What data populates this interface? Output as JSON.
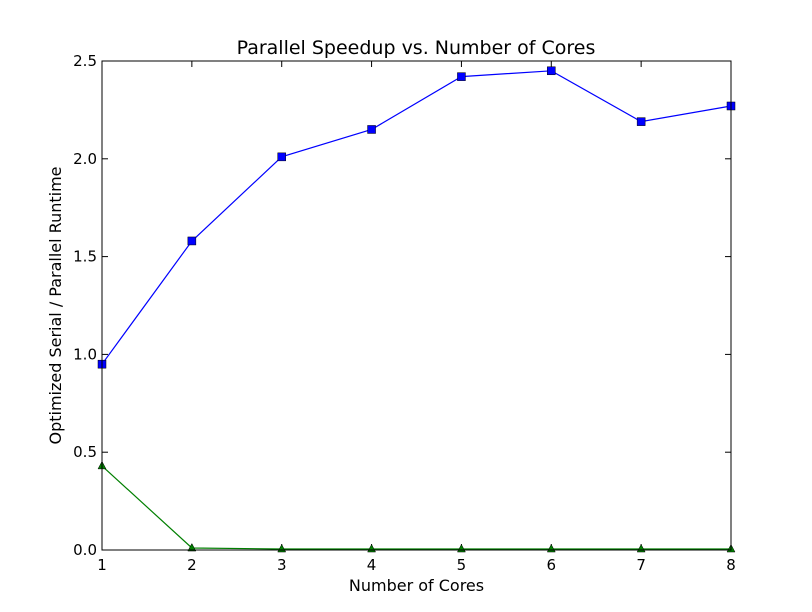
{
  "chart_data": {
    "type": "line",
    "title": "Parallel Speedup vs. Number of Cores",
    "xlabel": "Number of Cores",
    "ylabel": "Optimized Serial / Parallel Runtime",
    "x": [
      1,
      2,
      3,
      4,
      5,
      6,
      7,
      8
    ],
    "xlim": [
      1,
      8
    ],
    "ylim": [
      0,
      2.5
    ],
    "xticks": [
      "1",
      "2",
      "3",
      "4",
      "5",
      "6",
      "7",
      "8"
    ],
    "yticks": [
      "0.0",
      "0.5",
      "1.0",
      "1.5",
      "2.0",
      "2.5"
    ],
    "grid": false,
    "series": [
      {
        "color": "#0000ff",
        "marker": "square",
        "values": [
          0.95,
          1.58,
          2.01,
          2.15,
          2.42,
          2.45,
          2.19,
          2.27
        ]
      },
      {
        "color": "#007f00",
        "marker": "triangle",
        "values": [
          0.43,
          0.01,
          0.005,
          0.005,
          0.005,
          0.005,
          0.005,
          0.005
        ]
      }
    ]
  }
}
